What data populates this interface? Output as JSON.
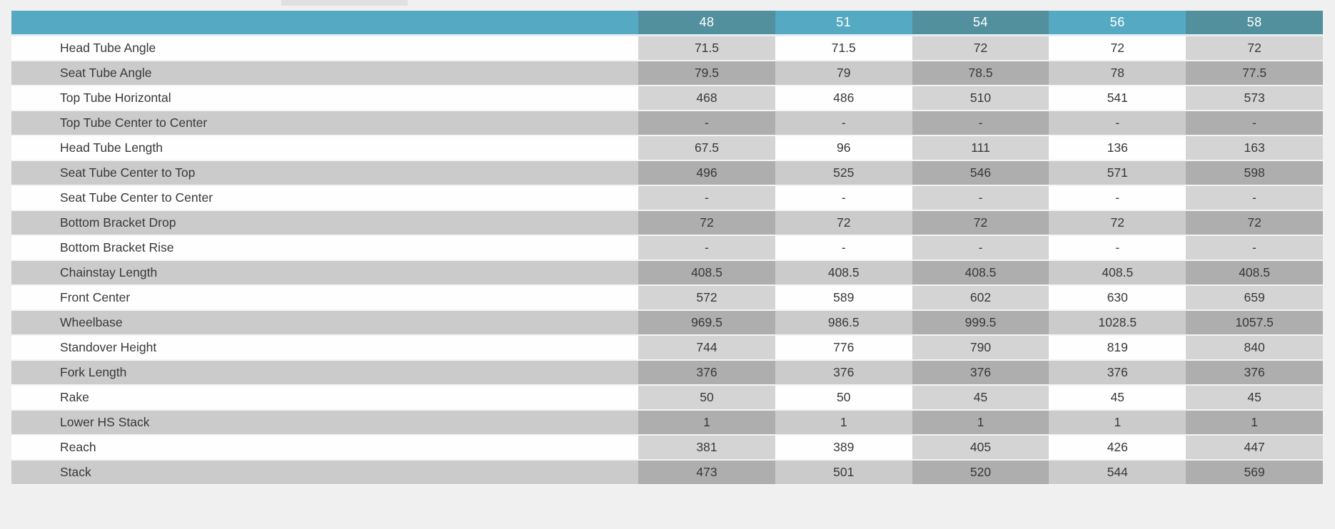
{
  "page": {
    "background_color": "#f0f0f0"
  },
  "colors": {
    "page_background": "#f0f0f0",
    "header_teal_light": "#55a9c2",
    "header_teal_dark": "#53909e",
    "row_white": "#fefefe",
    "row_gray": "#cbcbcb",
    "cell_tint_on_white": "#d4d4d4",
    "cell_tint_on_gray": "#aeaeae",
    "text_color": "#383838"
  },
  "table": {
    "size_headers": [
      "48",
      "51",
      "54",
      "56",
      "58"
    ],
    "rows": [
      {
        "label": "Head Tube Angle",
        "values": [
          "71.5",
          "71.5",
          "72",
          "72",
          "72"
        ]
      },
      {
        "label": "Seat Tube Angle",
        "values": [
          "79.5",
          "79",
          "78.5",
          "78",
          "77.5"
        ]
      },
      {
        "label": "Top Tube Horizontal",
        "values": [
          "468",
          "486",
          "510",
          "541",
          "573"
        ]
      },
      {
        "label": "Top Tube Center to Center",
        "values": [
          "-",
          "-",
          "-",
          "-",
          "-"
        ]
      },
      {
        "label": "Head Tube Length",
        "values": [
          "67.5",
          "96",
          "111",
          "136",
          "163"
        ]
      },
      {
        "label": "Seat Tube Center to Top",
        "values": [
          "496",
          "525",
          "546",
          "571",
          "598"
        ]
      },
      {
        "label": "Seat Tube Center to Center",
        "values": [
          "-",
          "-",
          "-",
          "-",
          "-"
        ]
      },
      {
        "label": "Bottom Bracket Drop",
        "values": [
          "72",
          "72",
          "72",
          "72",
          "72"
        ]
      },
      {
        "label": "Bottom Bracket Rise",
        "values": [
          "-",
          "-",
          "-",
          "-",
          "-"
        ]
      },
      {
        "label": "Chainstay Length",
        "values": [
          "408.5",
          "408.5",
          "408.5",
          "408.5",
          "408.5"
        ]
      },
      {
        "label": "Front Center",
        "values": [
          "572",
          "589",
          "602",
          "630",
          "659"
        ]
      },
      {
        "label": "Wheelbase",
        "values": [
          "969.5",
          "986.5",
          "999.5",
          "1028.5",
          "1057.5"
        ]
      },
      {
        "label": "Standover Height",
        "values": [
          "744",
          "776",
          "790",
          "819",
          "840"
        ]
      },
      {
        "label": "Fork Length",
        "values": [
          "376",
          "376",
          "376",
          "376",
          "376"
        ]
      },
      {
        "label": "Rake",
        "values": [
          "50",
          "50",
          "45",
          "45",
          "45"
        ]
      },
      {
        "label": "Lower HS Stack",
        "values": [
          "1",
          "1",
          "1",
          "1",
          "1"
        ]
      },
      {
        "label": "Reach",
        "values": [
          "381",
          "389",
          "405",
          "426",
          "447"
        ]
      },
      {
        "label": "Stack",
        "values": [
          "473",
          "501",
          "520",
          "544",
          "569"
        ]
      }
    ]
  },
  "chart_data": {
    "type": "table",
    "title": "",
    "columns": [
      "48",
      "51",
      "54",
      "56",
      "58"
    ],
    "rows": [
      {
        "label": "Head Tube Angle",
        "values": [
          "71.5",
          "71.5",
          "72",
          "72",
          "72"
        ]
      },
      {
        "label": "Seat Tube Angle",
        "values": [
          "79.5",
          "79",
          "78.5",
          "78",
          "77.5"
        ]
      },
      {
        "label": "Top Tube Horizontal",
        "values": [
          "468",
          "486",
          "510",
          "541",
          "573"
        ]
      },
      {
        "label": "Top Tube Center to Center",
        "values": [
          "-",
          "-",
          "-",
          "-",
          "-"
        ]
      },
      {
        "label": "Head Tube Length",
        "values": [
          "67.5",
          "96",
          "111",
          "136",
          "163"
        ]
      },
      {
        "label": "Seat Tube Center to Top",
        "values": [
          "496",
          "525",
          "546",
          "571",
          "598"
        ]
      },
      {
        "label": "Seat Tube Center to Center",
        "values": [
          "-",
          "-",
          "-",
          "-",
          "-"
        ]
      },
      {
        "label": "Bottom Bracket Drop",
        "values": [
          "72",
          "72",
          "72",
          "72",
          "72"
        ]
      },
      {
        "label": "Bottom Bracket Rise",
        "values": [
          "-",
          "-",
          "-",
          "-",
          "-"
        ]
      },
      {
        "label": "Chainstay Length",
        "values": [
          "408.5",
          "408.5",
          "408.5",
          "408.5",
          "408.5"
        ]
      },
      {
        "label": "Front Center",
        "values": [
          "572",
          "589",
          "602",
          "630",
          "659"
        ]
      },
      {
        "label": "Wheelbase",
        "values": [
          "969.5",
          "986.5",
          "999.5",
          "1028.5",
          "1057.5"
        ]
      },
      {
        "label": "Standover Height",
        "values": [
          "744",
          "776",
          "790",
          "819",
          "840"
        ]
      },
      {
        "label": "Fork Length",
        "values": [
          "376",
          "376",
          "376",
          "376",
          "376"
        ]
      },
      {
        "label": "Rake",
        "values": [
          "50",
          "50",
          "45",
          "45",
          "45"
        ]
      },
      {
        "label": "Lower HS Stack",
        "values": [
          "1",
          "1",
          "1",
          "1",
          "1"
        ]
      },
      {
        "label": "Reach",
        "values": [
          "381",
          "389",
          "405",
          "426",
          "447"
        ]
      },
      {
        "label": "Stack",
        "values": [
          "473",
          "501",
          "520",
          "544",
          "569"
        ]
      }
    ]
  }
}
